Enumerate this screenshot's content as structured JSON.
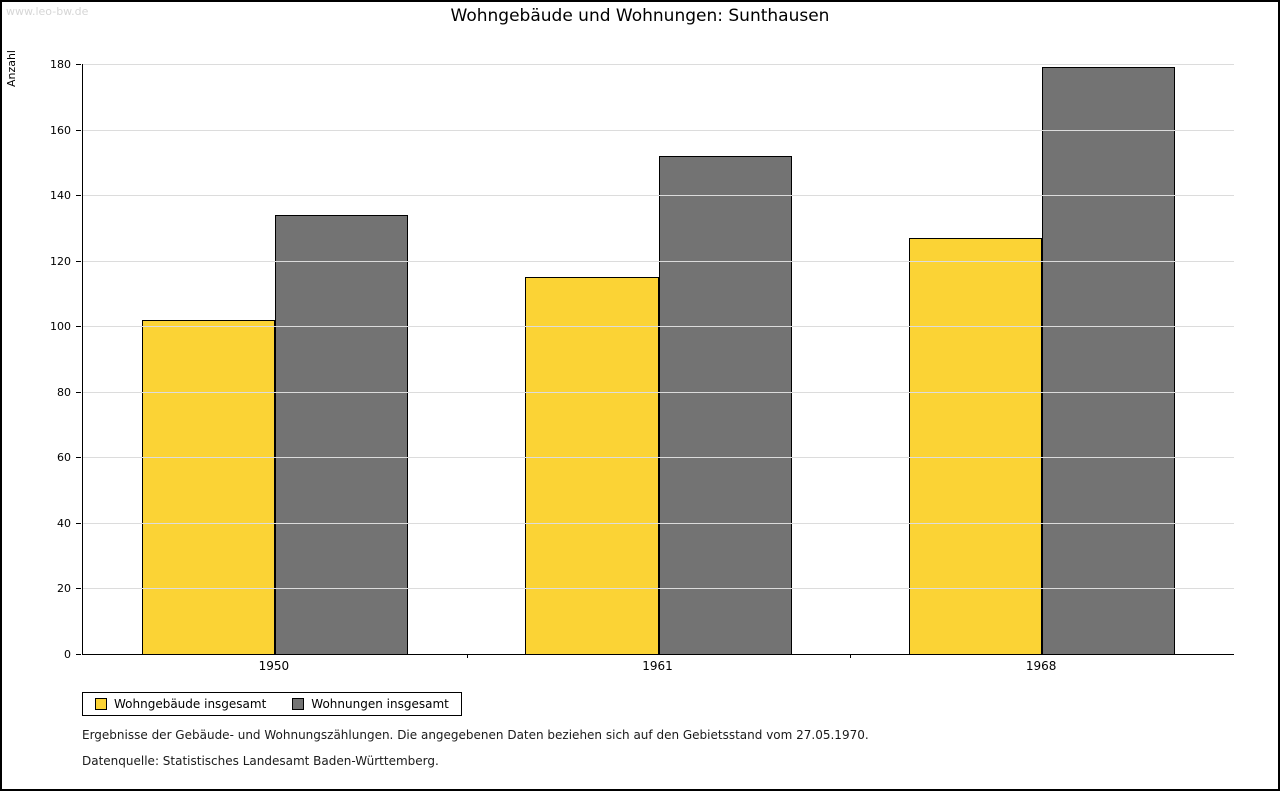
{
  "watermark": "www.leo-bw.de",
  "title": "Wohngebäude und Wohnungen: Sunthausen",
  "footer": {
    "line1": "Ergebnisse der Gebäude- und Wohnungszählungen. Die angegebenen Daten beziehen sich auf den Gebietsstand vom 27.05.1970.",
    "line2": "Datenquelle: Statistisches Landesamt Baden-Württemberg."
  },
  "chart_data": {
    "type": "bar",
    "title": "Wohngebäude und Wohnungen: Sunthausen",
    "categories": [
      "1950",
      "1961",
      "1968"
    ],
    "series": [
      {
        "name": "Wohngebäude insgesamt",
        "color": "#FBD335",
        "values": [
          102,
          115,
          127
        ]
      },
      {
        "name": "Wohnungen insgesamt",
        "color": "#737373",
        "values": [
          134,
          152,
          179
        ]
      }
    ],
    "xlabel": "",
    "ylabel": "Anzahl",
    "ylim": [
      0,
      180
    ],
    "ytick_step": 20,
    "grid": true,
    "legend_position": "bottom-left"
  }
}
